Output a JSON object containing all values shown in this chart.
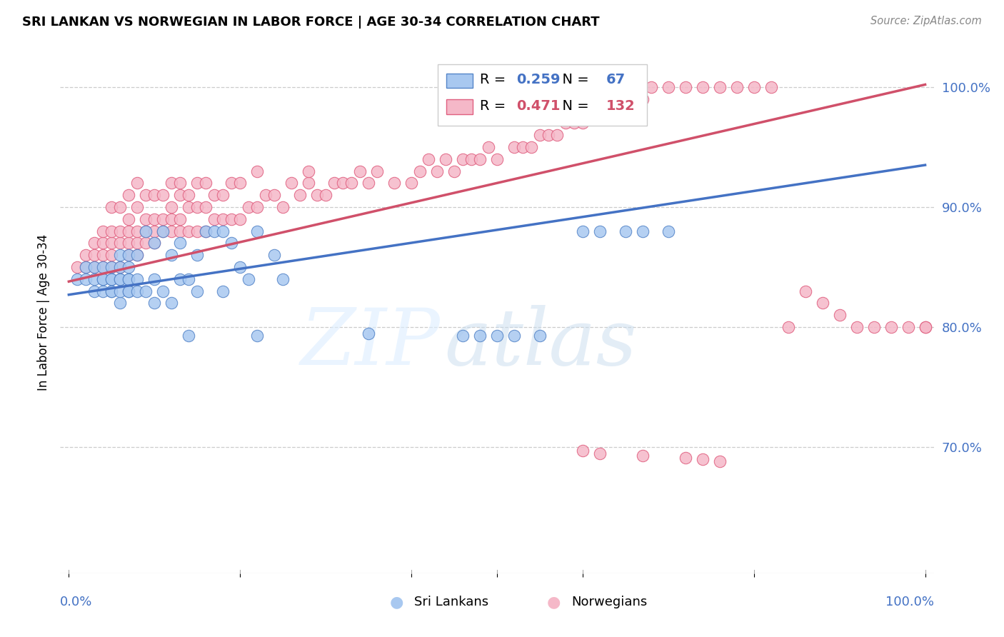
{
  "title": "SRI LANKAN VS NORWEGIAN IN LABOR FORCE | AGE 30-34 CORRELATION CHART",
  "source": "Source: ZipAtlas.com",
  "ylabel": "In Labor Force | Age 30-34",
  "ytick_labels": [
    "70.0%",
    "80.0%",
    "90.0%",
    "100.0%"
  ],
  "ytick_values": [
    0.7,
    0.8,
    0.9,
    1.0
  ],
  "xlim": [
    0.0,
    1.0
  ],
  "ylim": [
    0.595,
    1.03
  ],
  "sri_lankan_fill": "#A8C8F0",
  "sri_lankan_edge": "#5585C8",
  "norwegian_fill": "#F5B8C8",
  "norwegian_edge": "#E06080",
  "sri_lankan_line_color": "#4472C4",
  "norwegian_line_color": "#D0506A",
  "legend_sri_r": "0.259",
  "legend_sri_n": "67",
  "legend_nor_r": "0.471",
  "legend_nor_n": "132",
  "sri_line_x0": 0.0,
  "sri_line_x1": 1.0,
  "sri_line_y0": 0.827,
  "sri_line_y1": 0.935,
  "nor_line_x0": 0.0,
  "nor_line_x1": 1.0,
  "nor_line_y0": 0.838,
  "nor_line_y1": 1.002,
  "sri_x": [
    0.01,
    0.02,
    0.02,
    0.03,
    0.03,
    0.03,
    0.04,
    0.04,
    0.04,
    0.04,
    0.05,
    0.05,
    0.05,
    0.05,
    0.05,
    0.06,
    0.06,
    0.06,
    0.06,
    0.06,
    0.06,
    0.07,
    0.07,
    0.07,
    0.07,
    0.07,
    0.07,
    0.08,
    0.08,
    0.08,
    0.09,
    0.09,
    0.1,
    0.1,
    0.1,
    0.11,
    0.11,
    0.12,
    0.12,
    0.13,
    0.13,
    0.14,
    0.15,
    0.15,
    0.16,
    0.17,
    0.18,
    0.18,
    0.19,
    0.2,
    0.21,
    0.22,
    0.24,
    0.25,
    0.14,
    0.22,
    0.35,
    0.46,
    0.48,
    0.5,
    0.52,
    0.55,
    0.6,
    0.62,
    0.65,
    0.67,
    0.7
  ],
  "sri_y": [
    0.84,
    0.84,
    0.85,
    0.83,
    0.84,
    0.85,
    0.83,
    0.84,
    0.84,
    0.85,
    0.83,
    0.83,
    0.84,
    0.84,
    0.85,
    0.82,
    0.83,
    0.84,
    0.84,
    0.85,
    0.86,
    0.83,
    0.83,
    0.84,
    0.84,
    0.85,
    0.86,
    0.83,
    0.84,
    0.86,
    0.83,
    0.88,
    0.82,
    0.84,
    0.87,
    0.83,
    0.88,
    0.82,
    0.86,
    0.84,
    0.87,
    0.84,
    0.83,
    0.86,
    0.88,
    0.88,
    0.83,
    0.88,
    0.87,
    0.85,
    0.84,
    0.88,
    0.86,
    0.84,
    0.793,
    0.793,
    0.795,
    0.793,
    0.793,
    0.793,
    0.793,
    0.793,
    0.88,
    0.88,
    0.88,
    0.88,
    0.88
  ],
  "nor_x": [
    0.01,
    0.02,
    0.02,
    0.03,
    0.03,
    0.03,
    0.04,
    0.04,
    0.04,
    0.04,
    0.05,
    0.05,
    0.05,
    0.05,
    0.05,
    0.06,
    0.06,
    0.06,
    0.06,
    0.07,
    0.07,
    0.07,
    0.07,
    0.07,
    0.08,
    0.08,
    0.08,
    0.08,
    0.08,
    0.09,
    0.09,
    0.09,
    0.09,
    0.1,
    0.1,
    0.1,
    0.1,
    0.11,
    0.11,
    0.11,
    0.12,
    0.12,
    0.12,
    0.12,
    0.13,
    0.13,
    0.13,
    0.13,
    0.14,
    0.14,
    0.14,
    0.15,
    0.15,
    0.15,
    0.16,
    0.16,
    0.16,
    0.17,
    0.17,
    0.18,
    0.18,
    0.19,
    0.19,
    0.2,
    0.2,
    0.21,
    0.22,
    0.22,
    0.23,
    0.24,
    0.25,
    0.26,
    0.27,
    0.28,
    0.28,
    0.29,
    0.3,
    0.31,
    0.32,
    0.33,
    0.34,
    0.35,
    0.36,
    0.38,
    0.4,
    0.41,
    0.42,
    0.43,
    0.44,
    0.45,
    0.46,
    0.47,
    0.48,
    0.49,
    0.5,
    0.52,
    0.53,
    0.54,
    0.55,
    0.56,
    0.57,
    0.58,
    0.59,
    0.6,
    0.62,
    0.64,
    0.65,
    0.67,
    0.68,
    0.7,
    0.72,
    0.74,
    0.76,
    0.78,
    0.8,
    0.82,
    0.84,
    0.86,
    0.88,
    0.9,
    0.92,
    0.94,
    0.96,
    0.98,
    1.0,
    1.0,
    0.6,
    0.62,
    0.67,
    0.72,
    0.74,
    0.76
  ],
  "nor_y": [
    0.85,
    0.85,
    0.86,
    0.85,
    0.86,
    0.87,
    0.85,
    0.86,
    0.87,
    0.88,
    0.85,
    0.86,
    0.87,
    0.88,
    0.9,
    0.85,
    0.87,
    0.88,
    0.9,
    0.86,
    0.87,
    0.88,
    0.89,
    0.91,
    0.86,
    0.87,
    0.88,
    0.9,
    0.92,
    0.87,
    0.88,
    0.89,
    0.91,
    0.87,
    0.88,
    0.89,
    0.91,
    0.88,
    0.89,
    0.91,
    0.88,
    0.89,
    0.9,
    0.92,
    0.88,
    0.89,
    0.91,
    0.92,
    0.88,
    0.9,
    0.91,
    0.88,
    0.9,
    0.92,
    0.88,
    0.9,
    0.92,
    0.89,
    0.91,
    0.89,
    0.91,
    0.89,
    0.92,
    0.89,
    0.92,
    0.9,
    0.9,
    0.93,
    0.91,
    0.91,
    0.9,
    0.92,
    0.91,
    0.92,
    0.93,
    0.91,
    0.91,
    0.92,
    0.92,
    0.92,
    0.93,
    0.92,
    0.93,
    0.92,
    0.92,
    0.93,
    0.94,
    0.93,
    0.94,
    0.93,
    0.94,
    0.94,
    0.94,
    0.95,
    0.94,
    0.95,
    0.95,
    0.95,
    0.96,
    0.96,
    0.96,
    0.97,
    0.97,
    0.97,
    0.98,
    0.98,
    0.99,
    0.99,
    1.0,
    1.0,
    1.0,
    1.0,
    1.0,
    1.0,
    1.0,
    1.0,
    0.8,
    0.83,
    0.82,
    0.81,
    0.8,
    0.8,
    0.8,
    0.8,
    0.8,
    0.8,
    0.697,
    0.695,
    0.693,
    0.691,
    0.69,
    0.688
  ]
}
